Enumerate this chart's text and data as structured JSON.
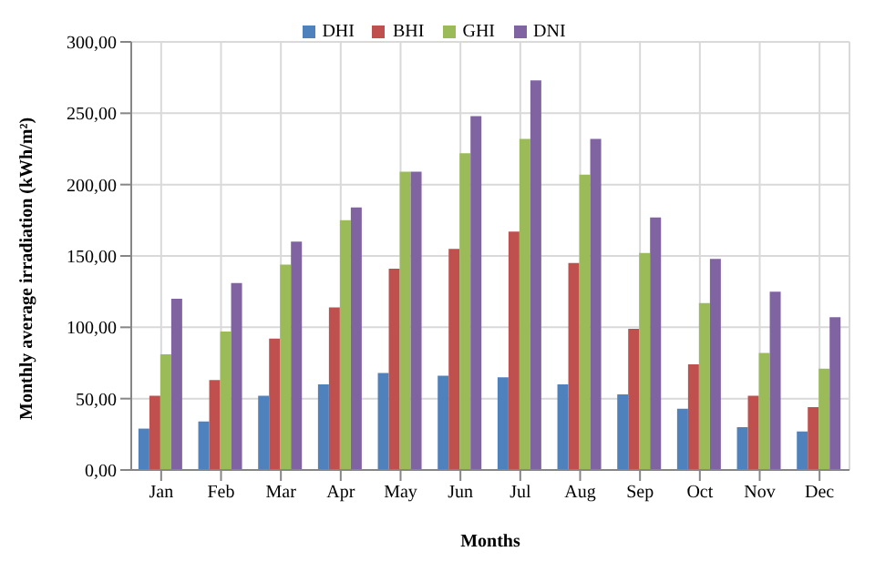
{
  "chart_data": {
    "type": "bar",
    "xlabel": "Months",
    "ylabel": "Monthly average irradiation (kWh/m²)",
    "categories": [
      "Jan",
      "Feb",
      "Mar",
      "Apr",
      "May",
      "Jun",
      "Jul",
      "Aug",
      "Sep",
      "Oct",
      "Nov",
      "Dec"
    ],
    "series": [
      {
        "name": "DHI",
        "color": "#4f81bd",
        "values": [
          29,
          34,
          52,
          60,
          68,
          66,
          65,
          60,
          53,
          43,
          30,
          27
        ]
      },
      {
        "name": "BHI",
        "color": "#c0504d",
        "values": [
          52,
          63,
          92,
          114,
          141,
          155,
          167,
          145,
          99,
          74,
          52,
          44
        ]
      },
      {
        "name": "GHI",
        "color": "#9bbb59",
        "values": [
          81,
          97,
          144,
          175,
          209,
          222,
          232,
          207,
          152,
          117,
          82,
          71
        ]
      },
      {
        "name": "DNI",
        "color": "#8064a2",
        "values": [
          120,
          131,
          160,
          184,
          209,
          248,
          273,
          232,
          177,
          148,
          125,
          107
        ]
      }
    ],
    "ylim": [
      0,
      300
    ],
    "yticks": [
      {
        "value": 0,
        "label": "0,00"
      },
      {
        "value": 50,
        "label": "50,00"
      },
      {
        "value": 100,
        "label": "100,00"
      },
      {
        "value": 150,
        "label": "150,00"
      },
      {
        "value": 200,
        "label": "200,00"
      },
      {
        "value": 250,
        "label": "250,00"
      },
      {
        "value": 300,
        "label": "300,00"
      }
    ],
    "grid": true,
    "legend": "top"
  }
}
